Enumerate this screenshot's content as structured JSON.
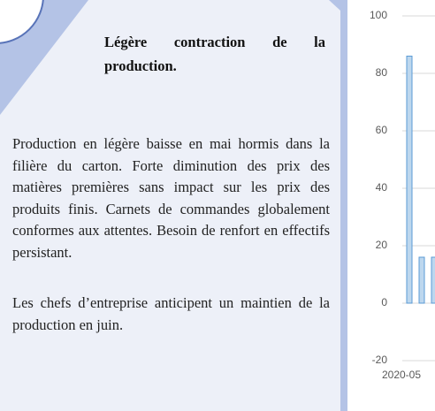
{
  "heading": "Légère contraction de la production.",
  "paragraphs": [
    "Production en légère baisse en mai hormis dans la filière du carton. Forte diminution des prix des matières premières sans impact sur les prix des produits finis. Carnets de commandes globalement conformes aux attentes. Besoin de renfort en effectifs persistant.",
    "Les chefs d’entreprise anticipent un maintien de la production en juin."
  ],
  "chart_data": {
    "type": "bar",
    "categories": [
      "2020-05",
      null,
      null
    ],
    "series": [
      {
        "color": "#bdd7ee",
        "values": [
          86,
          16,
          16
        ]
      }
    ],
    "ylim": [
      -20,
      100
    ],
    "yticks": [
      -20,
      0,
      20,
      40,
      60,
      80,
      100
    ],
    "grid": true
  }
}
